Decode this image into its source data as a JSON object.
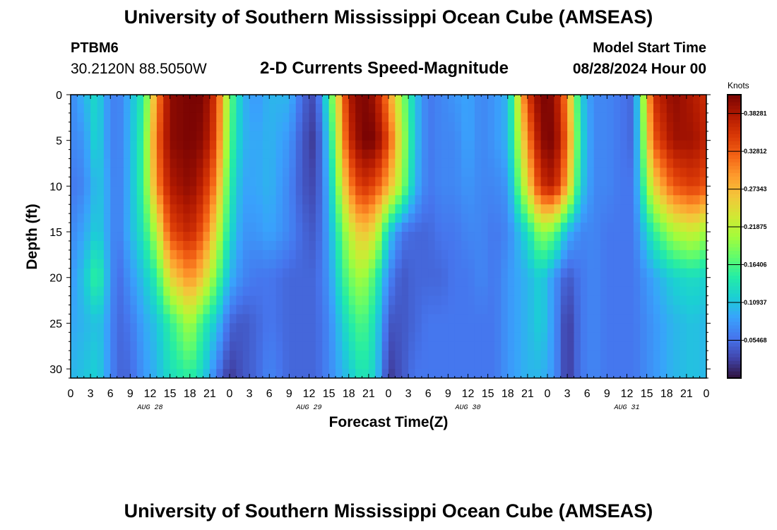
{
  "header": {
    "title": "University of Southern Mississippi Ocean Cube (AMSEAS)",
    "station_id": "PTBM6",
    "station_coords": "30.2120N  88.5050W",
    "chart_title": "2-D Currents Speed-Magnitude",
    "start_label": "Model Start Time",
    "start_value": "08/28/2024 Hour 00"
  },
  "footer": {
    "title": "University of Southern Mississippi Ocean Cube (AMSEAS)"
  },
  "chart_data": {
    "type": "heatmap",
    "title": "2-D Currents Speed-Magnitude",
    "xlabel": "Forecast Time(Z)",
    "ylabel": "Depth (ft)",
    "xlim": [
      0,
      96
    ],
    "ylim": [
      31,
      0
    ],
    "x_ticks": [
      "0",
      "3",
      "6",
      "9",
      "12",
      "15",
      "18",
      "21",
      "0",
      "3",
      "6",
      "9",
      "12",
      "15",
      "18",
      "21",
      "0",
      "3",
      "6",
      "9",
      "12",
      "15",
      "18",
      "21",
      "0",
      "3",
      "6",
      "9",
      "12",
      "15",
      "18",
      "21",
      "0"
    ],
    "y_ticks": [
      0,
      5,
      10,
      15,
      20,
      25,
      30
    ],
    "day_labels": [
      "AUG 28",
      "AUG 29",
      "AUG 30",
      "AUG 31"
    ],
    "colorbar": {
      "title": "Knots",
      "min": 0.0,
      "max": 0.41,
      "ticks": [
        "0.05468",
        "0.10937",
        "0.16406",
        "0.21875",
        "0.27343",
        "0.32812",
        "0.38281"
      ],
      "colors": [
        "#30123b",
        "#4145ab",
        "#4675ed",
        "#39a2fc",
        "#1bcfd4",
        "#24eca6",
        "#61fc6c",
        "#a4fc3b",
        "#d1e834",
        "#f3c63a",
        "#fe9b2d",
        "#f36315",
        "#d93806",
        "#b11901",
        "#7a0403"
      ]
    },
    "speed_field": {
      "columns_x_hours": [
        0,
        2,
        4,
        5,
        7,
        9,
        11,
        13,
        15,
        18,
        20,
        22,
        24,
        26,
        28,
        30,
        33,
        35,
        37,
        39,
        42,
        44,
        46,
        48,
        50,
        52,
        54,
        56,
        58,
        60,
        62,
        64,
        66,
        69,
        71,
        73,
        75,
        77,
        79,
        81,
        83,
        85,
        88,
        91,
        94,
        96
      ],
      "rows_depth_ft": [
        0,
        5,
        10,
        15,
        20,
        25,
        31
      ],
      "values_knots": [
        [
          0.07,
          0.1,
          0.13,
          0.09,
          0.06,
          0.1,
          0.15,
          0.3,
          0.4,
          0.41,
          0.41,
          0.35,
          0.18,
          0.1,
          0.08,
          0.1,
          0.1,
          0.05,
          0.03,
          0.15,
          0.38,
          0.41,
          0.39,
          0.3,
          0.2,
          0.11,
          0.06,
          0.07,
          0.08,
          0.09,
          0.07,
          0.08,
          0.1,
          0.35,
          0.41,
          0.4,
          0.3,
          0.12,
          0.07,
          0.07,
          0.06,
          0.05,
          0.36,
          0.4,
          0.38,
          0.36
        ],
        [
          0.07,
          0.08,
          0.13,
          0.09,
          0.06,
          0.1,
          0.16,
          0.32,
          0.4,
          0.41,
          0.4,
          0.34,
          0.17,
          0.1,
          0.09,
          0.1,
          0.08,
          0.04,
          0.02,
          0.12,
          0.36,
          0.41,
          0.41,
          0.34,
          0.22,
          0.11,
          0.06,
          0.07,
          0.07,
          0.09,
          0.07,
          0.08,
          0.1,
          0.3,
          0.4,
          0.41,
          0.32,
          0.13,
          0.07,
          0.07,
          0.06,
          0.05,
          0.33,
          0.39,
          0.39,
          0.37
        ],
        [
          0.06,
          0.07,
          0.11,
          0.1,
          0.06,
          0.1,
          0.16,
          0.3,
          0.38,
          0.4,
          0.37,
          0.3,
          0.15,
          0.09,
          0.09,
          0.1,
          0.07,
          0.04,
          0.03,
          0.1,
          0.3,
          0.36,
          0.34,
          0.28,
          0.2,
          0.1,
          0.06,
          0.07,
          0.07,
          0.08,
          0.07,
          0.07,
          0.08,
          0.25,
          0.36,
          0.38,
          0.28,
          0.12,
          0.07,
          0.07,
          0.06,
          0.06,
          0.25,
          0.33,
          0.35,
          0.33
        ],
        [
          0.07,
          0.09,
          0.12,
          0.1,
          0.06,
          0.1,
          0.14,
          0.22,
          0.34,
          0.37,
          0.33,
          0.24,
          0.13,
          0.08,
          0.08,
          0.09,
          0.07,
          0.05,
          0.04,
          0.09,
          0.22,
          0.27,
          0.24,
          0.12,
          0.06,
          0.05,
          0.05,
          0.06,
          0.06,
          0.07,
          0.07,
          0.06,
          0.07,
          0.13,
          0.2,
          0.18,
          0.1,
          0.07,
          0.07,
          0.06,
          0.06,
          0.06,
          0.15,
          0.21,
          0.23,
          0.2
        ],
        [
          0.08,
          0.11,
          0.16,
          0.12,
          0.05,
          0.08,
          0.11,
          0.15,
          0.25,
          0.3,
          0.26,
          0.18,
          0.1,
          0.07,
          0.06,
          0.06,
          0.05,
          0.05,
          0.05,
          0.08,
          0.18,
          0.21,
          0.16,
          0.07,
          0.04,
          0.05,
          0.05,
          0.05,
          0.06,
          0.06,
          0.07,
          0.06,
          0.08,
          0.1,
          0.12,
          0.08,
          0.04,
          0.06,
          0.07,
          0.06,
          0.06,
          0.06,
          0.09,
          0.12,
          0.13,
          0.12
        ],
        [
          0.09,
          0.1,
          0.11,
          0.1,
          0.05,
          0.06,
          0.09,
          0.11,
          0.15,
          0.21,
          0.15,
          0.11,
          0.05,
          0.04,
          0.05,
          0.06,
          0.05,
          0.05,
          0.05,
          0.07,
          0.14,
          0.17,
          0.13,
          0.04,
          0.04,
          0.05,
          0.06,
          0.06,
          0.06,
          0.06,
          0.06,
          0.06,
          0.08,
          0.1,
          0.12,
          0.08,
          0.02,
          0.06,
          0.07,
          0.06,
          0.06,
          0.06,
          0.08,
          0.1,
          0.11,
          0.1
        ],
        [
          0.1,
          0.11,
          0.12,
          0.1,
          0.05,
          0.05,
          0.08,
          0.1,
          0.13,
          0.15,
          0.12,
          0.06,
          0.02,
          0.04,
          0.05,
          0.07,
          0.05,
          0.05,
          0.05,
          0.07,
          0.11,
          0.14,
          0.12,
          0.02,
          0.04,
          0.06,
          0.06,
          0.06,
          0.06,
          0.06,
          0.06,
          0.06,
          0.08,
          0.1,
          0.1,
          0.08,
          0.02,
          0.06,
          0.07,
          0.06,
          0.06,
          0.06,
          0.08,
          0.1,
          0.11,
          0.1
        ]
      ]
    }
  }
}
